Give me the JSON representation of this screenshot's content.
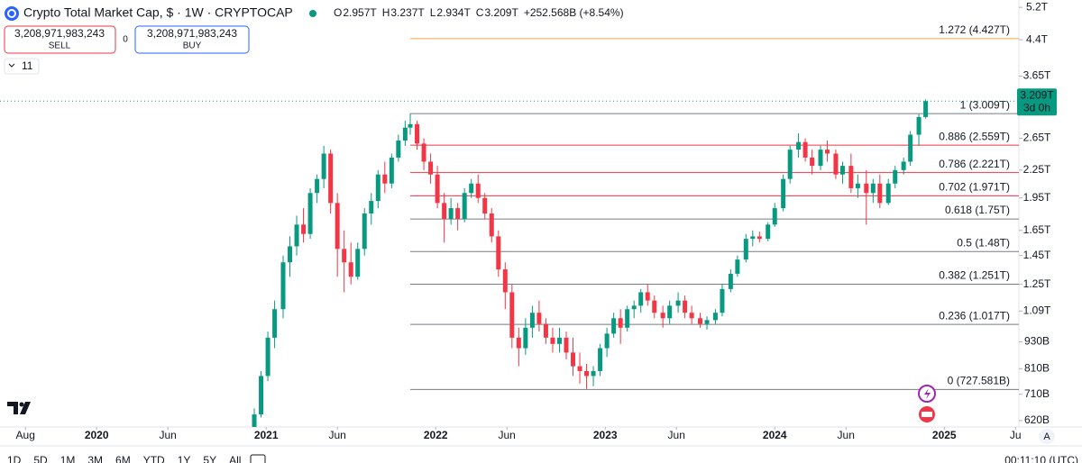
{
  "chart_data": {
    "type": "candlestick",
    "title": "Crypto Total Market Cap, $ · 1W · CRYPTOCAP",
    "ohlc": [
      {
        "key": "O",
        "value": "2.957T"
      },
      {
        "key": "H",
        "value": "3.237T"
      },
      {
        "key": "L",
        "value": "2.934T"
      },
      {
        "key": "C",
        "value": "3.209T"
      }
    ],
    "change": "+252.568B (+8.54%)",
    "sell": {
      "price": "3,208,971,983,243",
      "label": "SELL"
    },
    "spread": "0",
    "buy": {
      "price": "3,208,971,983,243",
      "label": "BUY"
    },
    "indicators_count": "11",
    "up_color": "#089981",
    "down_color": "#f23645",
    "log": true,
    "x": [
      2020.93,
      2020.97,
      2021.01,
      2021.05,
      2021.1,
      2021.14,
      2021.18,
      2021.22,
      2021.26,
      2021.3,
      2021.34,
      2021.38,
      2021.42,
      2021.46,
      2021.5,
      2021.54,
      2021.58,
      2021.62,
      2021.66,
      2021.7,
      2021.74,
      2021.78,
      2021.82,
      2021.85,
      2021.89,
      2021.93,
      2021.97,
      2022.01,
      2022.05,
      2022.09,
      2022.13,
      2022.17,
      2022.21,
      2022.25,
      2022.29,
      2022.33,
      2022.37,
      2022.41,
      2022.45,
      2022.49,
      2022.53,
      2022.57,
      2022.61,
      2022.65,
      2022.69,
      2022.73,
      2022.77,
      2022.81,
      2022.85,
      2022.89,
      2022.93,
      2022.97,
      2023.01,
      2023.05,
      2023.09,
      2023.13,
      2023.17,
      2023.21,
      2023.25,
      2023.29,
      2023.34,
      2023.38,
      2023.43,
      2023.47,
      2023.51,
      2023.56,
      2023.6,
      2023.65,
      2023.69,
      2023.74,
      2023.78,
      2023.83,
      2023.87,
      2023.91,
      2023.96,
      2024.0,
      2024.05,
      2024.09,
      2024.14,
      2024.18,
      2024.22,
      2024.27,
      2024.31,
      2024.36,
      2024.4,
      2024.45,
      2024.49,
      2024.54,
      2024.58,
      2024.62,
      2024.67,
      2024.71,
      2024.76,
      2024.8,
      2024.85,
      2024.89
    ],
    "open": [
      0.6,
      0.64,
      0.78,
      0.95,
      1.1,
      1.4,
      1.52,
      1.7,
      1.62,
      2.0,
      2.15,
      2.45,
      1.9,
      1.5,
      1.4,
      1.3,
      1.5,
      1.8,
      1.92,
      2.2,
      2.1,
      2.4,
      2.62,
      2.8,
      2.85,
      2.58,
      2.35,
      2.2,
      1.9,
      1.75,
      1.85,
      1.75,
      2.0,
      2.1,
      1.95,
      1.8,
      1.6,
      1.35,
      1.2,
      0.95,
      0.9,
      1.0,
      1.08,
      1.02,
      0.95,
      0.92,
      0.95,
      0.88,
      0.82,
      0.8,
      0.78,
      0.8,
      0.9,
      0.97,
      1.05,
      1.0,
      1.1,
      1.12,
      1.2,
      1.15,
      1.08,
      1.05,
      1.12,
      1.15,
      1.08,
      1.05,
      1.02,
      1.04,
      1.08,
      1.22,
      1.32,
      1.42,
      1.58,
      1.6,
      1.58,
      1.7,
      1.85,
      2.15,
      2.5,
      2.6,
      2.4,
      2.3,
      2.5,
      2.45,
      2.2,
      2.3,
      2.05,
      2.1,
      2.0,
      2.1,
      1.9,
      2.1,
      2.25,
      2.35,
      2.7,
      2.957
    ],
    "high": [
      0.66,
      0.8,
      0.98,
      1.15,
      1.45,
      1.6,
      1.78,
      1.85,
      2.05,
      2.2,
      2.55,
      2.5,
      2.0,
      1.65,
      1.55,
      1.55,
      1.85,
      2.0,
      2.25,
      2.35,
      2.45,
      2.7,
      2.9,
      3.009,
      2.9,
      2.65,
      2.45,
      2.3,
      2.0,
      1.95,
      1.9,
      2.05,
      2.15,
      2.2,
      2.0,
      1.85,
      1.65,
      1.4,
      1.25,
      1.0,
      1.05,
      1.12,
      1.15,
      1.05,
      1.0,
      1.0,
      0.98,
      0.95,
      0.88,
      0.83,
      0.82,
      0.92,
      1.0,
      1.08,
      1.1,
      1.12,
      1.15,
      1.22,
      1.25,
      1.18,
      1.12,
      1.15,
      1.2,
      1.18,
      1.12,
      1.08,
      1.06,
      1.1,
      1.25,
      1.35,
      1.45,
      1.62,
      1.65,
      1.64,
      1.72,
      1.9,
      2.2,
      2.55,
      2.72,
      2.65,
      2.5,
      2.55,
      2.62,
      2.5,
      2.35,
      2.45,
      2.2,
      2.25,
      2.15,
      2.2,
      2.15,
      2.3,
      2.4,
      2.75,
      3.0,
      3.237
    ],
    "low": [
      0.6,
      0.63,
      0.76,
      0.9,
      1.05,
      1.3,
      1.45,
      1.55,
      1.58,
      1.9,
      2.05,
      1.8,
      1.3,
      1.2,
      1.25,
      1.28,
      1.45,
      1.7,
      1.85,
      2.0,
      2.05,
      2.35,
      2.55,
      2.7,
      2.5,
      2.25,
      2.1,
      1.85,
      1.55,
      1.7,
      1.65,
      1.72,
      1.95,
      1.9,
      1.75,
      1.55,
      1.3,
      1.1,
      0.9,
      0.82,
      0.87,
      0.95,
      0.98,
      0.92,
      0.88,
      0.88,
      0.85,
      0.78,
      0.75,
      0.73,
      0.74,
      0.78,
      0.86,
      0.95,
      0.92,
      0.98,
      1.05,
      1.08,
      1.12,
      1.05,
      1.0,
      1.02,
      1.08,
      1.05,
      1.02,
      1.0,
      0.99,
      1.02,
      1.06,
      1.2,
      1.3,
      1.4,
      1.52,
      1.55,
      1.56,
      1.68,
      1.82,
      2.1,
      2.4,
      2.35,
      2.2,
      2.25,
      2.35,
      2.15,
      2.1,
      2.0,
      1.95,
      1.7,
      1.9,
      1.85,
      1.88,
      2.05,
      2.2,
      2.3,
      2.55,
      2.934
    ],
    "close": [
      0.64,
      0.78,
      0.95,
      1.1,
      1.4,
      1.52,
      1.7,
      1.62,
      2.0,
      2.15,
      2.45,
      1.9,
      1.5,
      1.4,
      1.3,
      1.5,
      1.8,
      1.92,
      2.2,
      2.1,
      2.4,
      2.62,
      2.8,
      2.85,
      2.58,
      2.35,
      2.2,
      1.9,
      1.75,
      1.85,
      1.75,
      2.0,
      2.1,
      1.95,
      1.8,
      1.6,
      1.35,
      1.2,
      0.95,
      0.9,
      1.0,
      1.08,
      1.02,
      0.95,
      0.92,
      0.95,
      0.88,
      0.82,
      0.8,
      0.78,
      0.8,
      0.9,
      0.97,
      1.05,
      1.0,
      1.1,
      1.12,
      1.2,
      1.15,
      1.08,
      1.05,
      1.12,
      1.15,
      1.08,
      1.05,
      1.02,
      1.04,
      1.08,
      1.22,
      1.32,
      1.42,
      1.58,
      1.6,
      1.58,
      1.7,
      1.85,
      2.15,
      2.5,
      2.6,
      2.4,
      2.3,
      2.5,
      2.45,
      2.2,
      2.3,
      2.05,
      2.1,
      2.0,
      2.1,
      1.9,
      2.1,
      2.25,
      2.35,
      2.7,
      2.957,
      3.209
    ],
    "xlim": [
      2019.43,
      2025.44
    ],
    "xticks": [
      {
        "value": 2019.58,
        "label": "Aug"
      },
      2020,
      {
        "value": 2020.42,
        "label": "Jun"
      },
      2021,
      {
        "value": 2021.42,
        "label": "Jun"
      },
      2022,
      {
        "value": 2022.42,
        "label": "Jun"
      },
      2023,
      {
        "value": 2023.42,
        "label": "Jun"
      },
      2024,
      {
        "value": 2024.42,
        "label": "Jun"
      },
      2025,
      {
        "value": 2025.42,
        "label": "Ju"
      }
    ],
    "ylim": [
      0.6,
      5.4
    ],
    "yticks": [
      {
        "value": 5.2,
        "label": "5.2T"
      },
      {
        "value": 4.4,
        "label": "4.4T"
      },
      {
        "value": 3.65,
        "label": "3.65T"
      },
      {
        "value": 2.65,
        "label": "2.65T"
      },
      {
        "value": 2.25,
        "label": "2.25T"
      },
      {
        "value": 1.95,
        "label": "1.95T"
      },
      {
        "value": 1.65,
        "label": "1.65T"
      },
      {
        "value": 1.45,
        "label": "1.45T"
      },
      {
        "value": 1.25,
        "label": "1.25T"
      },
      {
        "value": 1.09,
        "label": "1.09T"
      },
      {
        "value": 0.93,
        "label": "930B"
      },
      {
        "value": 0.81,
        "label": "810B"
      },
      {
        "value": 0.71,
        "label": "710B"
      },
      {
        "value": 0.62,
        "label": "620B"
      }
    ],
    "fib_start_x": 2021.85,
    "fib_levels": [
      {
        "value": 4.427,
        "label": "1.272 (4.427T)",
        "color": "#f7a440"
      },
      {
        "value": 3.009,
        "label": "1 (3.009T)",
        "color": "#787b86"
      },
      {
        "value": 2.559,
        "label": "0.886 (2.559T)",
        "color": "#f23645"
      },
      {
        "value": 2.221,
        "label": "0.786 (2.221T)",
        "color": "#f23645"
      },
      {
        "value": 1.971,
        "label": "0.702 (1.971T)",
        "color": "#f23645"
      },
      {
        "value": 1.75,
        "label": "0.618 (1.75T)",
        "color": "#787b86"
      },
      {
        "value": 1.48,
        "label": "0.5 (1.48T)",
        "color": "#787b86"
      },
      {
        "value": 1.251,
        "label": "0.382 (1.251T)",
        "color": "#787b86"
      },
      {
        "value": 1.017,
        "label": "0.236 (1.017T)",
        "color": "#787b86"
      },
      {
        "value": 0.727581,
        "label": "0 (727.581B)",
        "color": "#787b86"
      }
    ],
    "last_price": {
      "value": 3.209,
      "label": "3.209T",
      "countdown": "3d 0h"
    }
  },
  "toolbar": {
    "ranges": [
      "1D",
      "5D",
      "1M",
      "3M",
      "6M",
      "YTD",
      "1Y",
      "5Y",
      "All"
    ],
    "clock": "00:11:10 (UTC)",
    "auto": "A"
  }
}
